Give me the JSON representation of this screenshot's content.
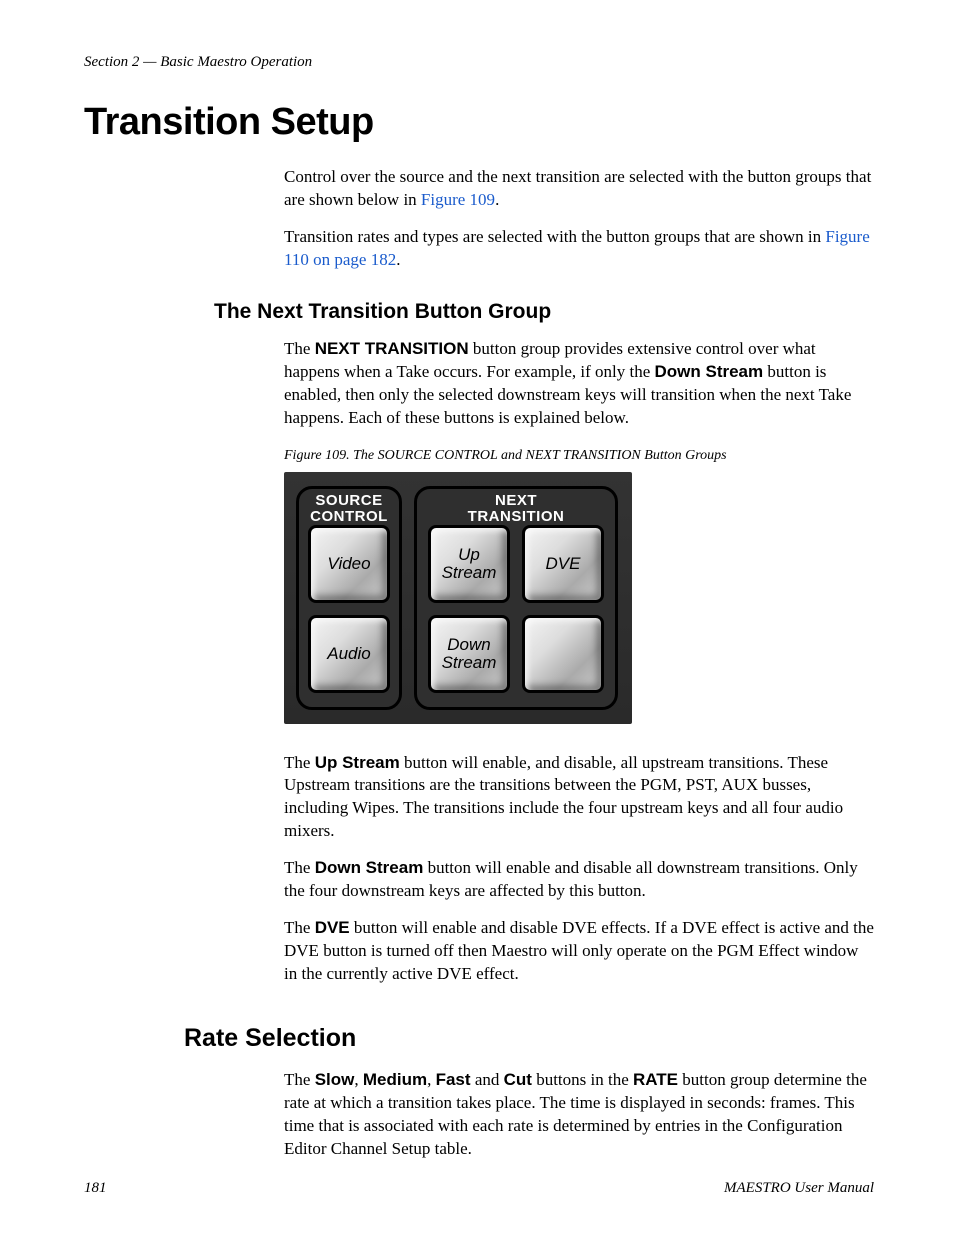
{
  "header": {
    "section": "Section 2 — Basic Maestro Operation"
  },
  "h1": "Transition Setup",
  "intro": {
    "p1_a": "Control over the source and the next transition are selected with the button groups that are shown below in ",
    "p1_link": "Figure 109",
    "p1_c": ".",
    "p2_a": "Transition rates and types are selected with the button groups that are shown in ",
    "p2_link": "Figure 110 on page 182",
    "p2_c": "."
  },
  "sec1": {
    "title": "The Next Transition Button Group",
    "p1_a": "The ",
    "p1_b": "NEXT TRANSITION",
    "p1_c": " button group provides extensive control over what happens when a Take occurs.   For example, if only the ",
    "p1_d": "Down Stream",
    "p1_e": " button is enabled, then only the selected downstream keys will transition when the next Take happens. Each of these buttons is explained below."
  },
  "figure": {
    "caption": "Figure 109.  The SOURCE CONTROL and NEXT TRANSITION Button Groups",
    "group1_title_l1": "SOURCE",
    "group1_title_l2": "CONTROL",
    "group2_title_l1": "NEXT",
    "group2_title_l2": "TRANSITION",
    "btn_video": "Video",
    "btn_audio": "Audio",
    "btn_up_l1": "Up",
    "btn_up_l2": "Stream",
    "btn_dve": "DVE",
    "btn_down_l1": "Down",
    "btn_down_l2": "Stream",
    "btn_blank": ""
  },
  "after": {
    "p1_a": "The ",
    "p1_b": "Up Stream",
    "p1_c": " button will enable, and disable, all upstream transitions. These Upstream transitions are the transitions between the PGM, PST, AUX busses, including Wipes. The transitions include the four upstream keys and all four audio mixers.",
    "p2_a": "The ",
    "p2_b": "Down Stream",
    "p2_c": " button will enable and disable all downstream transitions. Only the four downstream keys are affected by this button.",
    "p3_a": "The ",
    "p3_b": "DVE",
    "p3_c": " button will enable and disable DVE effects. If a DVE effect is active and the DVE button is turned off then Maestro will only operate on the PGM Effect window in the currently active DVE effect."
  },
  "sec2": {
    "title": "Rate Selection",
    "p1_a": "The ",
    "p1_b": "Slow",
    "p1_c": ", ",
    "p1_d": "Medium",
    "p1_e": ", ",
    "p1_f": "Fast",
    "p1_g": " and ",
    "p1_h": "Cut",
    "p1_i": " buttons in the ",
    "p1_j": "RATE",
    "p1_k": " button group determine the rate at which a transition takes place. The time is displayed in seconds: frames. This time that is associated with each rate is determined by entries in the Configuration Editor Channel Setup table."
  },
  "footer": {
    "page": "181",
    "manual": "MAESTRO User Manual"
  }
}
